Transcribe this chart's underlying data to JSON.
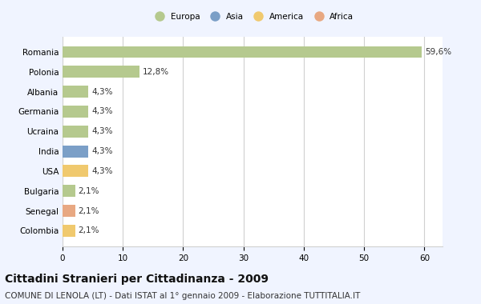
{
  "categories": [
    "Romania",
    "Polonia",
    "Albania",
    "Germania",
    "Ucraina",
    "India",
    "USA",
    "Bulgaria",
    "Senegal",
    "Colombia"
  ],
  "values": [
    59.6,
    12.8,
    4.3,
    4.3,
    4.3,
    4.3,
    4.3,
    2.1,
    2.1,
    2.1
  ],
  "labels": [
    "59,6%",
    "12,8%",
    "4,3%",
    "4,3%",
    "4,3%",
    "4,3%",
    "4,3%",
    "2,1%",
    "2,1%",
    "2,1%"
  ],
  "colors": [
    "#b5c98e",
    "#b5c98e",
    "#b5c98e",
    "#b5c98e",
    "#b5c98e",
    "#7b9fc7",
    "#f0c96e",
    "#b5c98e",
    "#e8a882",
    "#f0c96e"
  ],
  "legend_labels": [
    "Europa",
    "Asia",
    "America",
    "Africa"
  ],
  "legend_colors": [
    "#b5c98e",
    "#7b9fc7",
    "#f0c96e",
    "#e8a882"
  ],
  "title": "Cittadini Stranieri per Cittadinanza - 2009",
  "subtitle": "COMUNE DI LENOLA (LT) - Dati ISTAT al 1° gennaio 2009 - Elaborazione TUTTITALIA.IT",
  "xlim": [
    0,
    63
  ],
  "xticks": [
    0,
    10,
    20,
    30,
    40,
    50,
    60
  ],
  "background_color": "#f0f4ff",
  "bar_background": "#ffffff",
  "grid_color": "#d0d0d0",
  "title_fontsize": 10,
  "subtitle_fontsize": 7.5,
  "label_fontsize": 7.5,
  "tick_fontsize": 7.5
}
